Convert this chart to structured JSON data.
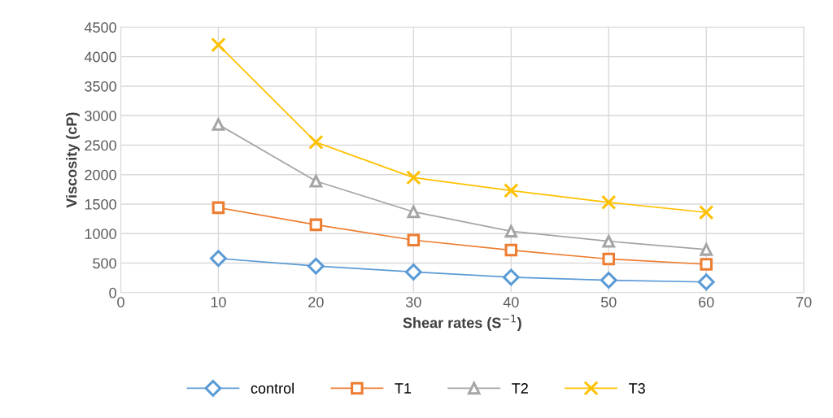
{
  "chart_data": {
    "type": "line",
    "xlabel": "Shear rates (S$^{−1}$)",
    "ylabel": "Viscosity (cP)",
    "x": [
      10,
      20,
      30,
      40,
      50,
      60
    ],
    "series": [
      {
        "name": "control",
        "color": "#5b9bd5",
        "marker": "diamond",
        "values": [
          580,
          450,
          350,
          260,
          210,
          180
        ]
      },
      {
        "name": "T1",
        "color": "#ed7d31",
        "marker": "square",
        "values": [
          1440,
          1150,
          890,
          720,
          570,
          480
        ]
      },
      {
        "name": "T2",
        "color": "#a5a5a5",
        "marker": "triangle",
        "values": [
          2850,
          1890,
          1370,
          1040,
          870,
          730
        ]
      },
      {
        "name": "T3",
        "color": "#ffc000",
        "marker": "cross",
        "values": [
          4200,
          2550,
          1950,
          1730,
          1530,
          1360
        ]
      }
    ],
    "xlim": [
      0,
      70
    ],
    "xticks": [
      0,
      10,
      20,
      30,
      40,
      50,
      60,
      70
    ],
    "ylim": [
      0,
      4500
    ],
    "yticks": [
      0,
      500,
      1000,
      1500,
      2000,
      2500,
      3000,
      3500,
      4000,
      4500
    ],
    "grid": true,
    "legend": "bottom",
    "line_style": "solid"
  }
}
